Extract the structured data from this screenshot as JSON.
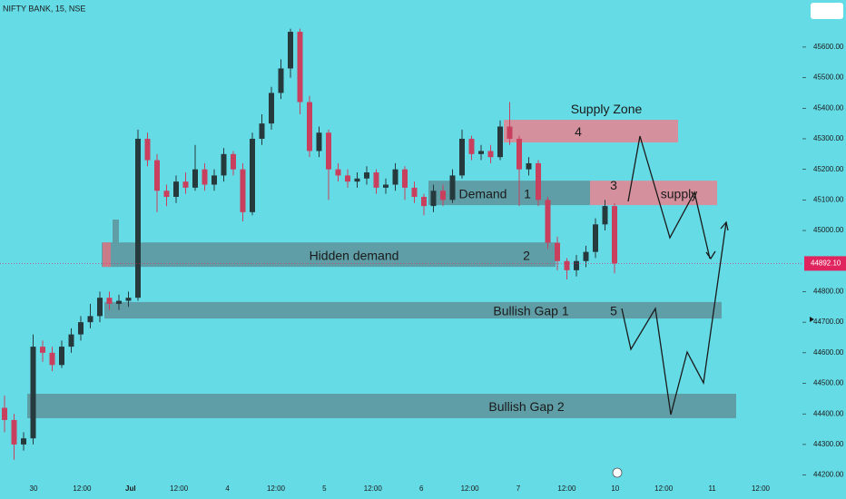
{
  "chart_data": {
    "type": "candlestick",
    "title": "NIFTY BANK, 15, NSE",
    "background": "#65dbe6",
    "up_color": "#263a3e",
    "down_color": "#c9405e",
    "ylim": [
      44181,
      45754
    ],
    "yticks": [
      {
        "value": 45600,
        "label": "45600.00"
      },
      {
        "value": 45500,
        "label": "45500.00"
      },
      {
        "value": 45400,
        "label": "45400.00"
      },
      {
        "value": 45300,
        "label": "45300.00"
      },
      {
        "value": 45200,
        "label": "45200.00"
      },
      {
        "value": 45100,
        "label": "45100.00"
      },
      {
        "value": 45000,
        "label": "45000.00"
      },
      {
        "value": 44800,
        "label": "44800.00"
      },
      {
        "value": 44700,
        "label": "44700.00"
      },
      {
        "value": 44600,
        "label": "44600.00"
      },
      {
        "value": 44500,
        "label": "44500.00"
      },
      {
        "value": 44400,
        "label": "44400.00"
      },
      {
        "value": 44300,
        "label": "44300.00"
      },
      {
        "value": 44200,
        "label": "44200.00"
      }
    ],
    "last_price": {
      "value": 44892.1,
      "label": "44892.10",
      "color": "#e0245e"
    },
    "x_labels": [
      "30",
      "12:00",
      "Jul",
      "12:00",
      "4",
      "12:00",
      "5",
      "12:00",
      "6",
      "12:00",
      "7",
      "12:00",
      "10",
      "12:00",
      "11",
      "12:00"
    ],
    "open": [
      44420,
      44380,
      44300,
      44320,
      44620,
      44600,
      44560,
      44620,
      44660,
      44700,
      44720,
      44780,
      44760,
      44770,
      44780,
      45300,
      45230,
      45130,
      45110,
      45160,
      45140,
      45200,
      45150,
      45180,
      45250,
      45200,
      45060,
      45300,
      45350,
      45450,
      45530,
      45650,
      45420,
      45260,
      45320,
      45200,
      45180,
      45160,
      45170,
      45190,
      45140,
      45150,
      45200,
      45140,
      45110,
      45080,
      45130,
      45100,
      45180,
      45300,
      45250,
      45260,
      45240,
      45340,
      45300,
      45200,
      45220,
      45100,
      44960,
      44900,
      44870,
      44900,
      44930,
      45020,
      45080
    ],
    "high": [
      44460,
      44400,
      44340,
      44660,
      44640,
      44620,
      44640,
      44680,
      44720,
      44760,
      44800,
      44800,
      44790,
      44800,
      45330,
      45320,
      45250,
      45150,
      45180,
      45190,
      45280,
      45220,
      45200,
      45270,
      45260,
      45220,
      45320,
      45380,
      45470,
      45560,
      45660,
      45660,
      45440,
      45340,
      45330,
      45220,
      45200,
      45190,
      45210,
      45200,
      45170,
      45220,
      45210,
      45160,
      45120,
      45150,
      45150,
      45200,
      45330,
      45310,
      45280,
      45280,
      45360,
      45420,
      45310,
      45240,
      45230,
      45110,
      44980,
      44910,
      44920,
      44950,
      45040,
      45100,
      45090
    ],
    "low": [
      44340,
      44250,
      44280,
      44300,
      44570,
      44540,
      44550,
      44600,
      44640,
      44680,
      44700,
      44740,
      44740,
      44750,
      44770,
      45210,
      45060,
      45080,
      45090,
      45120,
      45130,
      45130,
      45130,
      45160,
      45180,
      45030,
      45050,
      45280,
      45330,
      45430,
      45500,
      45380,
      45240,
      45240,
      45100,
      45160,
      45140,
      45140,
      45150,
      45120,
      45120,
      45130,
      45100,
      45090,
      45050,
      45060,
      45080,
      45090,
      45170,
      45230,
      45230,
      45220,
      45230,
      45280,
      45080,
      45180,
      45080,
      44940,
      44870,
      44840,
      44850,
      44880,
      44910,
      45000,
      44860
    ],
    "close": [
      44380,
      44300,
      44320,
      44620,
      44600,
      44560,
      44620,
      44660,
      44700,
      44720,
      44780,
      44760,
      44770,
      44780,
      45300,
      45230,
      45130,
      45110,
      45160,
      45140,
      45200,
      45150,
      45180,
      45250,
      45200,
      45060,
      45300,
      45350,
      45450,
      45530,
      45650,
      45420,
      45260,
      45320,
      45200,
      45180,
      45160,
      45170,
      45190,
      45140,
      45150,
      45200,
      45140,
      45110,
      45080,
      45130,
      45100,
      45180,
      45300,
      45250,
      45260,
      45240,
      45340,
      45300,
      45200,
      45220,
      45100,
      44960,
      44900,
      44870,
      44900,
      44930,
      45020,
      45080,
      44892.1
    ],
    "supply_title": "Supply Zone",
    "zones": [
      {
        "label": "Hidden demand",
        "number": "2",
        "top": 44961,
        "bottom": 44881,
        "color": "#5f9ea7"
      },
      {
        "label": "Demand",
        "number": "1",
        "top": 45163,
        "bottom": 45083,
        "color": "#5f9ea7"
      },
      {
        "label": "supply",
        "number": "3",
        "top": 45163,
        "bottom": 45083,
        "color": "#d4909c"
      },
      {
        "number": "4",
        "top": 45362,
        "bottom": 45288,
        "color": "#d4909c"
      },
      {
        "label": "Bullish Gap 1",
        "number": "5",
        "top": 44766,
        "bottom": 44712,
        "color": "#5f9ea7"
      },
      {
        "label": "Bullish Gap 2",
        "top": 44466,
        "bottom": 44386,
        "color": "#5f9ea7"
      }
    ]
  }
}
